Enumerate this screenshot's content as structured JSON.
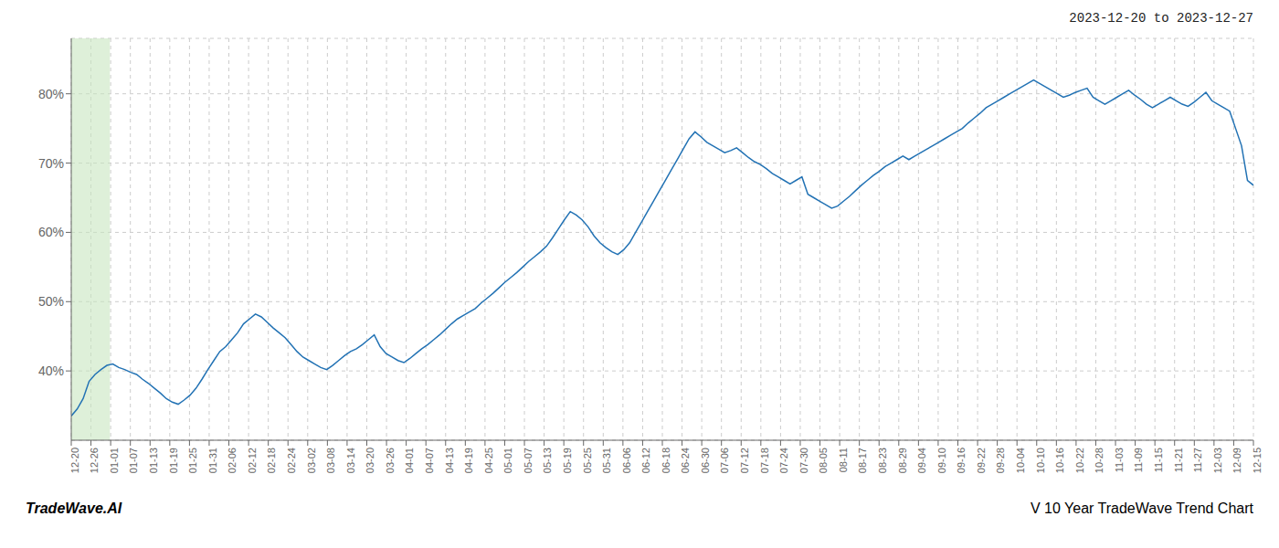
{
  "chart_data": {
    "type": "line",
    "title": "2023-12-20 to 2023-12-27",
    "annotations": [
      "TradeWave.AI",
      "V 10 Year TradeWave Trend Chart"
    ],
    "color": "#2272b4",
    "grid": true,
    "line_style": "solid",
    "highlight": {
      "start": 0,
      "end": 6.5,
      "color": "#c8e6c0"
    },
    "xlim": [
      0,
      199
    ],
    "xticks": [
      {
        "value": 0,
        "label": "12-20"
      },
      {
        "value": 3.316667,
        "label": "12-26"
      },
      {
        "value": 6.633333,
        "label": "01-01"
      },
      {
        "value": 9.95,
        "label": "01-07"
      },
      {
        "value": 13.266667,
        "label": "01-13"
      },
      {
        "value": 16.583333,
        "label": "01-19"
      },
      {
        "value": 19.9,
        "label": "01-25"
      },
      {
        "value": 23.216667,
        "label": "01-31"
      },
      {
        "value": 26.533333,
        "label": "02-06"
      },
      {
        "value": 29.85,
        "label": "02-12"
      },
      {
        "value": 33.166667,
        "label": "02-18"
      },
      {
        "value": 36.483333,
        "label": "02-24"
      },
      {
        "value": 39.8,
        "label": "03-02"
      },
      {
        "value": 43.116667,
        "label": "03-08"
      },
      {
        "value": 46.433333,
        "label": "03-14"
      },
      {
        "value": 49.75,
        "label": "03-20"
      },
      {
        "value": 53.066667,
        "label": "03-26"
      },
      {
        "value": 56.383333,
        "label": "04-01"
      },
      {
        "value": 59.7,
        "label": "04-07"
      },
      {
        "value": 63.016667,
        "label": "04-13"
      },
      {
        "value": 66.333333,
        "label": "04-19"
      },
      {
        "value": 69.65,
        "label": "04-25"
      },
      {
        "value": 72.966667,
        "label": "05-01"
      },
      {
        "value": 76.283333,
        "label": "05-07"
      },
      {
        "value": 79.6,
        "label": "05-13"
      },
      {
        "value": 82.916667,
        "label": "05-19"
      },
      {
        "value": 86.233333,
        "label": "05-25"
      },
      {
        "value": 89.55,
        "label": "05-31"
      },
      {
        "value": 92.866667,
        "label": "06-06"
      },
      {
        "value": 96.183333,
        "label": "06-12"
      },
      {
        "value": 99.5,
        "label": "06-18"
      },
      {
        "value": 102.816667,
        "label": "06-24"
      },
      {
        "value": 106.133333,
        "label": "06-30"
      },
      {
        "value": 109.45,
        "label": "07-06"
      },
      {
        "value": 112.766667,
        "label": "07-12"
      },
      {
        "value": 116.083333,
        "label": "07-18"
      },
      {
        "value": 119.4,
        "label": "07-24"
      },
      {
        "value": 122.716667,
        "label": "07-30"
      },
      {
        "value": 126.033333,
        "label": "08-05"
      },
      {
        "value": 129.35,
        "label": "08-11"
      },
      {
        "value": 132.666667,
        "label": "08-17"
      },
      {
        "value": 135.983333,
        "label": "08-23"
      },
      {
        "value": 139.3,
        "label": "08-29"
      },
      {
        "value": 142.616667,
        "label": "09-04"
      },
      {
        "value": 145.933333,
        "label": "09-10"
      },
      {
        "value": 149.25,
        "label": "09-16"
      },
      {
        "value": 152.566667,
        "label": "09-22"
      },
      {
        "value": 155.883333,
        "label": "09-28"
      },
      {
        "value": 159.2,
        "label": "10-04"
      },
      {
        "value": 162.516667,
        "label": "10-10"
      },
      {
        "value": 165.833333,
        "label": "10-16"
      },
      {
        "value": 169.15,
        "label": "10-22"
      },
      {
        "value": 172.466667,
        "label": "10-28"
      },
      {
        "value": 175.783333,
        "label": "11-03"
      },
      {
        "value": 179.1,
        "label": "11-09"
      },
      {
        "value": 182.416667,
        "label": "11-15"
      },
      {
        "value": 185.733333,
        "label": "11-21"
      },
      {
        "value": 189.05,
        "label": "11-27"
      },
      {
        "value": 192.366667,
        "label": "12-03"
      },
      {
        "value": 195.683333,
        "label": "12-09"
      },
      {
        "value": 199,
        "label": "12-15"
      }
    ],
    "ylim": [
      30,
      88
    ],
    "yticks": [
      {
        "value": 40,
        "label": "40%"
      },
      {
        "value": 50,
        "label": "50%"
      },
      {
        "value": 60,
        "label": "60%"
      },
      {
        "value": 70,
        "label": "70%"
      },
      {
        "value": 80,
        "label": "80%"
      }
    ],
    "values": [
      33.5,
      34.5,
      36.0,
      38.5,
      39.5,
      40.2,
      40.8,
      41.0,
      40.5,
      40.2,
      39.8,
      39.5,
      38.8,
      38.2,
      37.5,
      36.8,
      36.0,
      35.5,
      35.2,
      35.8,
      36.5,
      37.5,
      38.8,
      40.2,
      41.5,
      42.8,
      43.5,
      44.5,
      45.5,
      46.8,
      47.5,
      48.2,
      47.8,
      47.0,
      46.2,
      45.5,
      44.8,
      43.8,
      42.8,
      42.0,
      41.5,
      41.0,
      40.5,
      40.2,
      40.8,
      41.5,
      42.2,
      42.8,
      43.2,
      43.8,
      44.5,
      45.2,
      43.5,
      42.5,
      42.0,
      41.5,
      41.2,
      41.8,
      42.5,
      43.2,
      43.8,
      44.5,
      45.2,
      46.0,
      46.8,
      47.5,
      48.0,
      48.5,
      49.0,
      49.8,
      50.5,
      51.2,
      52.0,
      52.8,
      53.5,
      54.2,
      55.0,
      55.8,
      56.5,
      57.2,
      58.0,
      59.2,
      60.5,
      61.8,
      63.0,
      62.5,
      61.8,
      60.8,
      59.5,
      58.5,
      57.8,
      57.2,
      56.8,
      57.5,
      58.5,
      60.0,
      61.5,
      63.0,
      64.5,
      66.0,
      67.5,
      69.0,
      70.5,
      72.0,
      73.5,
      74.5,
      73.8,
      73.0,
      72.5,
      72.0,
      71.5,
      71.8,
      72.2,
      71.5,
      70.8,
      70.2,
      69.8,
      69.2,
      68.5,
      68.0,
      67.5,
      67.0,
      67.5,
      68.0,
      65.5,
      65.0,
      64.5,
      64.0,
      63.5,
      63.8,
      64.5,
      65.2,
      66.0,
      66.8,
      67.5,
      68.2,
      68.8,
      69.5,
      70.0,
      70.5,
      71.0,
      70.5,
      71.0,
      71.5,
      72.0,
      72.5,
      73.0,
      73.5,
      74.0,
      74.5,
      75.0,
      75.8,
      76.5,
      77.2,
      78.0,
      78.5,
      79.0,
      79.5,
      80.0,
      80.5,
      81.0,
      81.5,
      82.0,
      81.5,
      81.0,
      80.5,
      80.0,
      79.5,
      79.8,
      80.2,
      80.5,
      80.8,
      79.5,
      79.0,
      78.5,
      79.0,
      79.5,
      80.0,
      80.5,
      79.8,
      79.2,
      78.5,
      78.0,
      78.5,
      79.0,
      79.5,
      79.0,
      78.5,
      78.2,
      78.8,
      79.5,
      80.2,
      79.0,
      78.5,
      78.0,
      77.5,
      75.0,
      72.5,
      67.5,
      66.8
    ]
  }
}
